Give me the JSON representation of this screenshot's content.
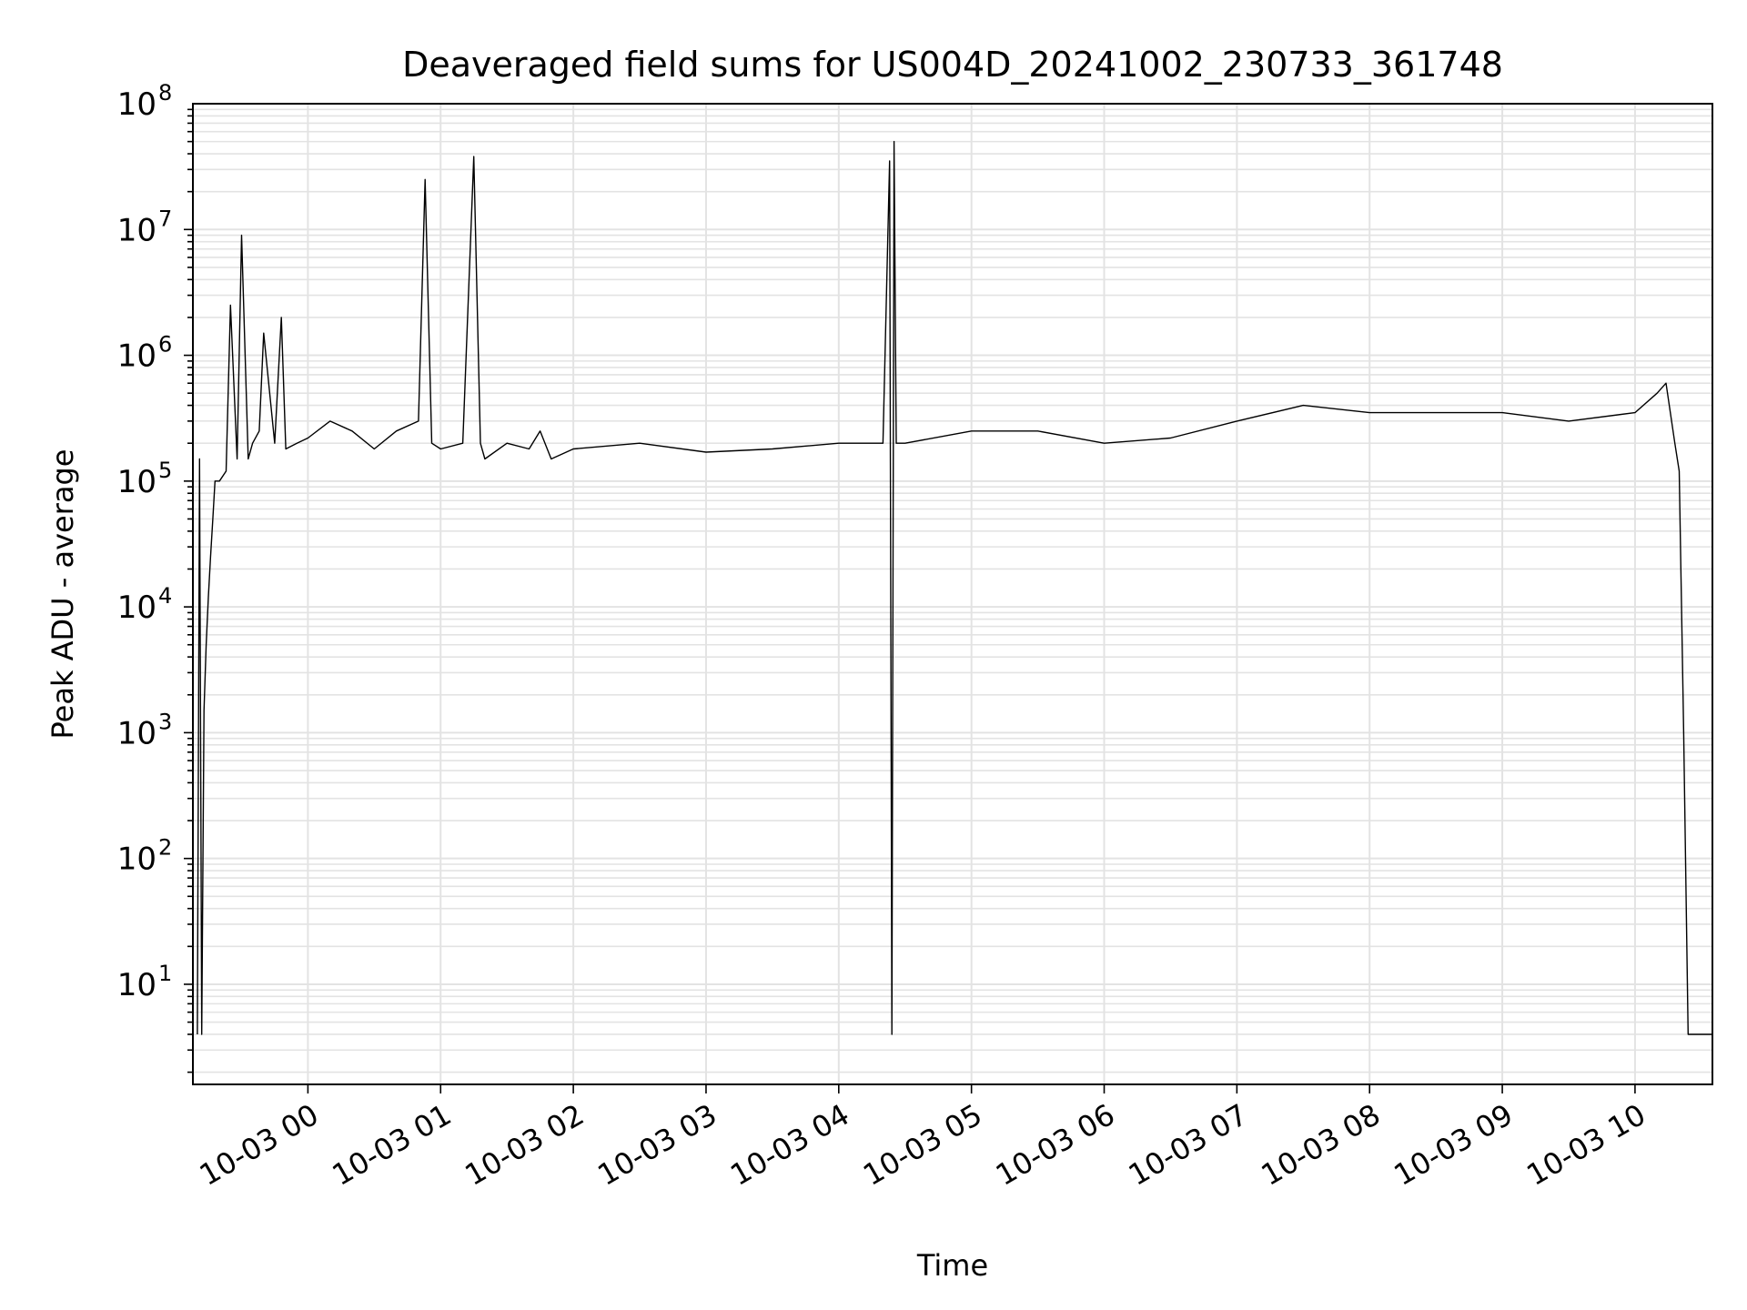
{
  "chart_data": {
    "type": "line",
    "title": "Deaveraged field sums for US004D_20241002_230733_361748",
    "xlabel": "Time",
    "ylabel": "Peak ADU - average",
    "yscale": "log",
    "ylim": [
      1.6,
      100000000
    ],
    "xlim": [
      "2024-10-02 23:08",
      "2024-10-03 10:35"
    ],
    "grid": "on (major and minor)",
    "x_tick_labels": [
      "10-03 00",
      "10-03 01",
      "10-03 02",
      "10-03 03",
      "10-03 04",
      "10-03 05",
      "10-03 06",
      "10-03 07",
      "10-03 08",
      "10-03 09",
      "10-03 10"
    ],
    "y_tick_labels": [
      {
        "base": "10",
        "exp": "1"
      },
      {
        "base": "10",
        "exp": "2"
      },
      {
        "base": "10",
        "exp": "3"
      },
      {
        "base": "10",
        "exp": "4"
      },
      {
        "base": "10",
        "exp": "5"
      },
      {
        "base": "10",
        "exp": "6"
      },
      {
        "base": "10",
        "exp": "7"
      },
      {
        "base": "10",
        "exp": "8"
      }
    ],
    "line_color": "#000000",
    "series": [
      {
        "x": [
          "2024-10-02 23:10",
          "2024-10-02 23:11",
          "2024-10-02 23:12",
          "2024-10-02 23:13",
          "2024-10-02 23:14",
          "2024-10-02 23:15",
          "2024-10-02 23:16",
          "2024-10-02 23:17",
          "2024-10-02 23:18",
          "2024-10-02 23:20",
          "2024-10-02 23:23",
          "2024-10-02 23:25",
          "2024-10-02 23:28",
          "2024-10-02 23:30",
          "2024-10-02 23:33",
          "2024-10-02 23:35",
          "2024-10-02 23:38",
          "2024-10-02 23:40",
          "2024-10-02 23:45",
          "2024-10-02 23:48",
          "2024-10-02 23:50",
          "2024-10-02 23:55",
          "2024-10-03 00:00",
          "2024-10-03 00:10",
          "2024-10-03 00:20",
          "2024-10-03 00:30",
          "2024-10-03 00:40",
          "2024-10-03 00:50",
          "2024-10-03 00:53",
          "2024-10-03 00:56",
          "2024-10-03 01:00",
          "2024-10-03 01:10",
          "2024-10-03 01:15",
          "2024-10-03 01:18",
          "2024-10-03 01:20",
          "2024-10-03 01:30",
          "2024-10-03 01:40",
          "2024-10-03 01:45",
          "2024-10-03 01:50",
          "2024-10-03 02:00",
          "2024-10-03 02:30",
          "2024-10-03 03:00",
          "2024-10-03 03:30",
          "2024-10-03 04:00",
          "2024-10-03 04:20",
          "2024-10-03 04:23",
          "2024-10-03 04:24",
          "2024-10-03 04:25",
          "2024-10-03 04:26",
          "2024-10-03 04:27",
          "2024-10-03 04:30",
          "2024-10-03 05:00",
          "2024-10-03 05:30",
          "2024-10-03 06:00",
          "2024-10-03 06:30",
          "2024-10-03 07:00",
          "2024-10-03 07:30",
          "2024-10-03 08:00",
          "2024-10-03 08:30",
          "2024-10-03 09:00",
          "2024-10-03 09:30",
          "2024-10-03 10:00",
          "2024-10-03 10:10",
          "2024-10-03 10:14",
          "2024-10-03 10:18",
          "2024-10-03 10:20",
          "2024-10-03 10:22",
          "2024-10-03 10:24",
          "2024-10-03 10:26",
          "2024-10-03 10:30",
          "2024-10-03 10:35"
        ],
        "y": [
          4,
          150000,
          4,
          1500,
          5000,
          12000,
          25000,
          50000,
          100000,
          100000,
          120000,
          2500000,
          150000,
          9000000,
          150000,
          200000,
          250000,
          1500000,
          200000,
          2000000,
          180000,
          200000,
          220000,
          300000,
          250000,
          180000,
          250000,
          300000,
          25000000,
          200000,
          180000,
          200000,
          38000000,
          200000,
          150000,
          200000,
          180000,
          250000,
          150000,
          180000,
          200000,
          170000,
          180000,
          200000,
          200000,
          35000000,
          4,
          50000000,
          200000,
          200000,
          200000,
          250000,
          250000,
          200000,
          220000,
          300000,
          400000,
          350000,
          350000,
          350000,
          300000,
          350000,
          500000,
          600000,
          200000,
          120000,
          1000,
          4,
          4,
          4,
          4
        ]
      }
    ],
    "annotations": []
  }
}
